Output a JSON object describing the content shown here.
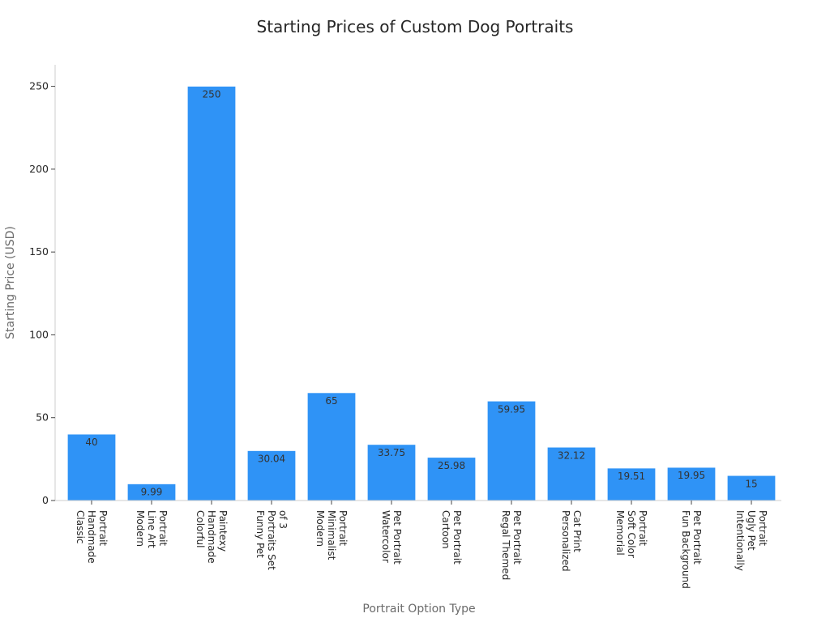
{
  "chart_data": {
    "type": "bar",
    "title": "Starting Prices of Custom Dog Portraits",
    "xlabel": "Portrait Option Type",
    "ylabel": "Starting Price (USD)",
    "ylim": [
      0,
      263
    ],
    "yticks": [
      0,
      50,
      100,
      150,
      200,
      250
    ],
    "grid": false,
    "bar_color": "#2f93f6",
    "categories": [
      [
        "Classic",
        "Handmade",
        "Portrait"
      ],
      [
        "Modern",
        "Line Art",
        "Portrait"
      ],
      [
        "Colorful",
        "Handmade",
        "Paintexy"
      ],
      [
        "Funny Pet",
        "Portraits Set",
        "of 3"
      ],
      [
        "Modern",
        "Minimalist",
        "Portrait"
      ],
      [
        "Watercolor",
        "Pet Portrait"
      ],
      [
        "Cartoon",
        "Pet Portrait"
      ],
      [
        "Regal Themed",
        "Pet Portrait"
      ],
      [
        "Personalized",
        "Cat Print"
      ],
      [
        "Memorial",
        "Soft Color",
        "Portrait"
      ],
      [
        "Fun Background",
        "Pet Portrait"
      ],
      [
        "Intentionally",
        "Ugly Pet",
        "Portrait"
      ]
    ],
    "values": [
      40,
      9.99,
      250,
      30.04,
      65,
      33.75,
      25.98,
      59.95,
      32.12,
      19.51,
      19.95,
      15
    ],
    "data_labels": [
      "40",
      "9.99",
      "250",
      "30.04",
      "65",
      "33.75",
      "25.98",
      "59.95",
      "32.12",
      "19.51",
      "19.95",
      "15"
    ]
  }
}
